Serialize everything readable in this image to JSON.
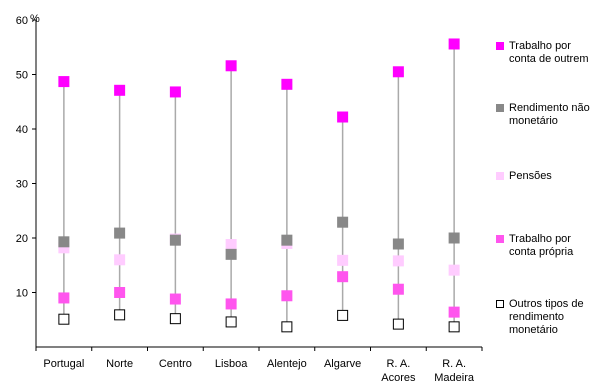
{
  "chart_data": {
    "type": "scatter",
    "ylabel": "%",
    "ylim": [
      0,
      60
    ],
    "yticks": [
      10,
      20,
      30,
      40,
      50,
      60
    ],
    "categories": [
      [
        "Portugal"
      ],
      [
        "Norte"
      ],
      [
        "Centro"
      ],
      [
        "Lisboa"
      ],
      [
        "Alentejo"
      ],
      [
        "Algarve"
      ],
      [
        "R. A.",
        "Acores"
      ],
      [
        "R. A.",
        "Madeira"
      ]
    ],
    "series": [
      {
        "name": "Trabalho por conta de outrem",
        "name_lines": [
          "Trabalho por",
          "conta de outrem"
        ],
        "color": "#ff00ff",
        "values": [
          48.7,
          47.1,
          46.8,
          51.6,
          48.2,
          42.2,
          50.5,
          55.6
        ]
      },
      {
        "name": "Rendimento não monetário",
        "name_lines": [
          "Rendimento não",
          "monetário"
        ],
        "color": "#888888",
        "values": [
          19.3,
          20.9,
          19.6,
          17.0,
          19.6,
          22.9,
          18.9,
          20.0
        ]
      },
      {
        "name": "Pensões",
        "name_lines": [
          "Pensões"
        ],
        "color": "#ffccff",
        "values": [
          18.2,
          16.0,
          19.8,
          18.8,
          19.0,
          15.9,
          15.8,
          14.1
        ]
      },
      {
        "name": "Trabalho por conta própria",
        "name_lines": [
          "Trabalho por",
          "conta própria"
        ],
        "color": "#ff55ee",
        "values": [
          9.0,
          10.0,
          8.8,
          7.9,
          9.4,
          12.9,
          10.6,
          6.4
        ]
      },
      {
        "name": "Outros tipos de rendimento monetário",
        "name_lines": [
          "Outros tipos de",
          "rendimento",
          "monetário"
        ],
        "color": "#ffffff",
        "values": [
          5.1,
          5.9,
          5.2,
          4.6,
          3.7,
          5.8,
          4.2,
          3.7
        ]
      }
    ],
    "grid": false,
    "legend": "right"
  }
}
